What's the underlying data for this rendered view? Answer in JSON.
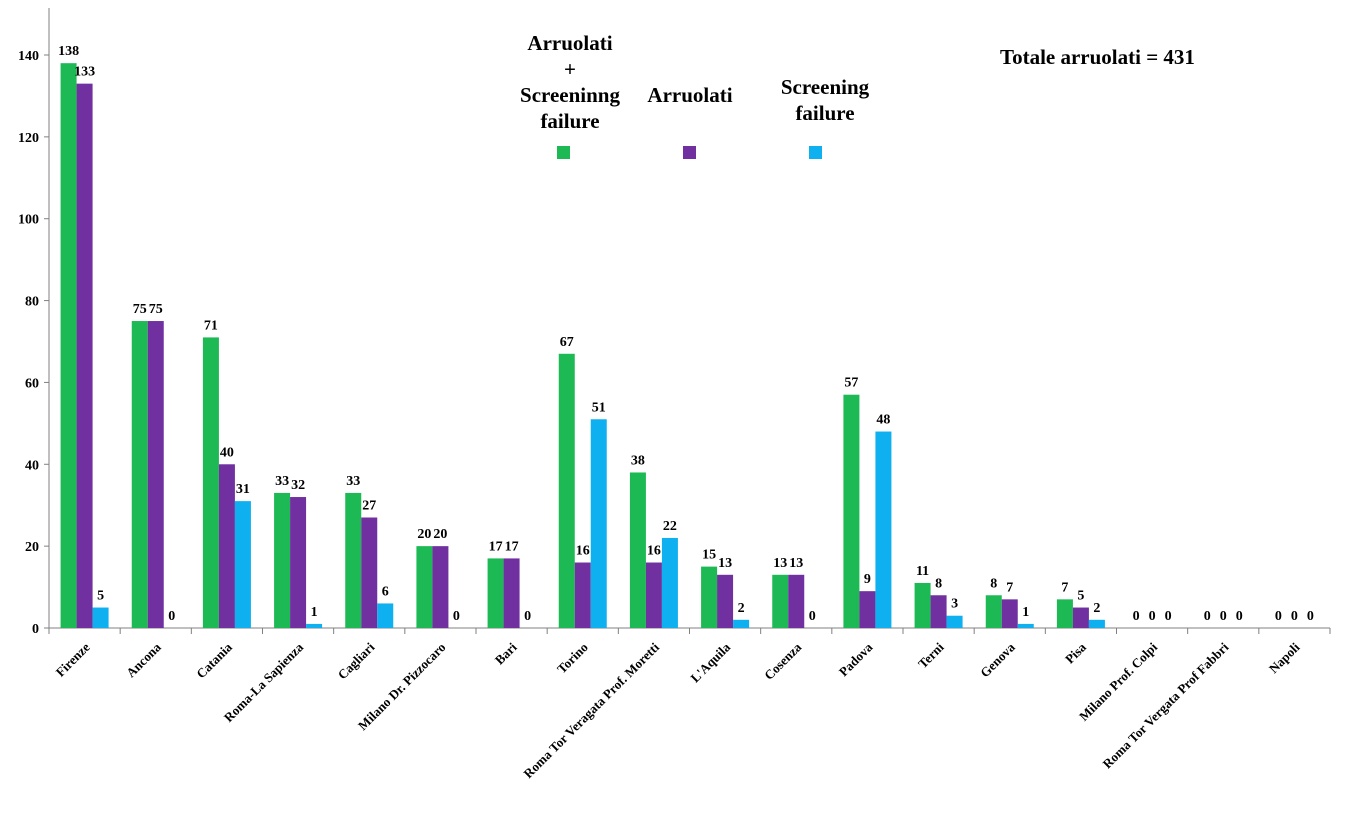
{
  "chart_data": {
    "type": "bar",
    "categories": [
      "Firenze",
      "Ancona",
      "Catania",
      "Roma-La Sapienza",
      "Cagliari",
      "Milano Dr. Pizzocaro",
      "Bari",
      "Torino",
      "Roma Tor Veragata Prof. Moretti",
      "L'Aquila",
      "Cosenza",
      "Padova",
      "Terni",
      "Genova",
      "Pisa",
      "Milano Prof. Colpi",
      "Roma Tor Vergata Prof Fabbri",
      "Napoli"
    ],
    "series": [
      {
        "name": "Arruolati\n+\nScreeninng\nfailure",
        "color": "#1db954",
        "values": [
          138,
          75,
          71,
          33,
          33,
          20,
          17,
          67,
          38,
          15,
          13,
          57,
          11,
          8,
          7,
          0,
          0,
          0
        ]
      },
      {
        "name": "Arruolati",
        "color": "#7030a0",
        "values": [
          133,
          75,
          40,
          32,
          27,
          20,
          17,
          16,
          16,
          13,
          13,
          9,
          8,
          7,
          5,
          0,
          0,
          0
        ]
      },
      {
        "name": "Screening\nfailure",
        "color": "#0fb0f0",
        "values": [
          5,
          0,
          31,
          1,
          6,
          0,
          0,
          51,
          22,
          2,
          0,
          48,
          3,
          1,
          2,
          0,
          0,
          0
        ]
      }
    ],
    "yticks": [
      0,
      20,
      40,
      60,
      80,
      100,
      120,
      140
    ],
    "ylim": [
      0,
      150
    ],
    "annotation": "Totale arruolati = 431",
    "legend_position": "top",
    "grid": false
  }
}
